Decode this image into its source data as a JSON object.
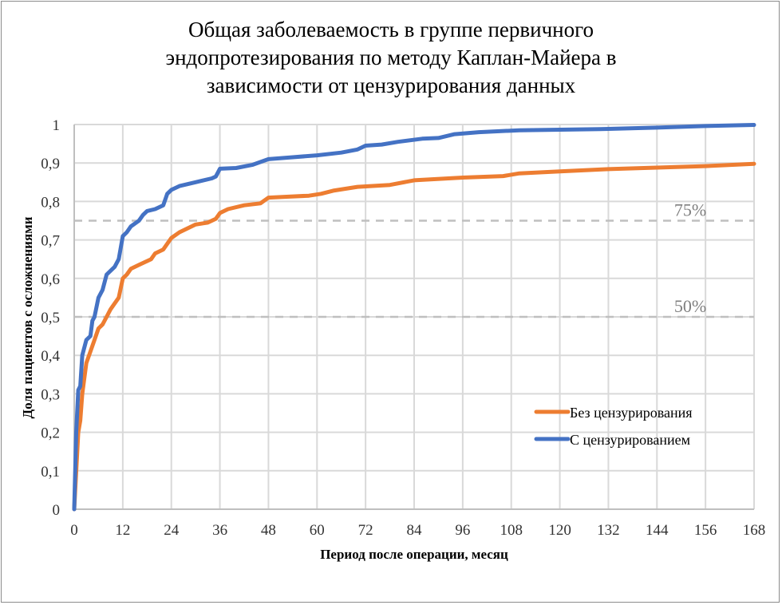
{
  "chart_data": {
    "type": "line",
    "title": "Общая заболеваемость в группе первичного эндопротезирования по методу Каплан-Майера в зависимости от цензурирования данных",
    "title_lines": [
      "Общая заболеваемость в группе первичного",
      "эндопротезирования по методу Каплан-Майера в",
      "зависимости от цензурирования данных"
    ],
    "xlabel": "Период после операции, месяц",
    "ylabel": "Доля пациентов с осложнениями",
    "xlim": [
      0,
      168
    ],
    "ylim": [
      0,
      1
    ],
    "x_ticks": [
      "0",
      "12",
      "24",
      "36",
      "48",
      "60",
      "72",
      "84",
      "96",
      "108",
      "120",
      "132",
      "144",
      "156",
      "168"
    ],
    "y_ticks": [
      "0",
      "0,1",
      "0,2",
      "0,3",
      "0,4",
      "0,5",
      "0,6",
      "0,7",
      "0,8",
      "0,9",
      "1"
    ],
    "grid": true,
    "legend_position": "lower right (inside plot)",
    "reference_lines": [
      {
        "y": 0.75,
        "label": "75%",
        "style": "dashed",
        "color": "#bfbfbf"
      },
      {
        "y": 0.5,
        "label": "50%",
        "style": "dashed",
        "color": "#bfbfbf"
      }
    ],
    "series": [
      {
        "name": "Без цензурирования",
        "color": "#ed7d31",
        "x": [
          0,
          1,
          1.5,
          2,
          3,
          4,
          5,
          6,
          7,
          8,
          9,
          11,
          12,
          13,
          14,
          16,
          17,
          19,
          20,
          22,
          23,
          24,
          26,
          28,
          30,
          33,
          35,
          36,
          38,
          42,
          46,
          48,
          52,
          58,
          61,
          64,
          70,
          78,
          84,
          96,
          106,
          110,
          120,
          132,
          144,
          156,
          168
        ],
        "values": [
          0,
          0.2,
          0.23,
          0.3,
          0.38,
          0.41,
          0.44,
          0.47,
          0.48,
          0.5,
          0.52,
          0.55,
          0.6,
          0.61,
          0.625,
          0.635,
          0.64,
          0.65,
          0.665,
          0.675,
          0.69,
          0.705,
          0.72,
          0.73,
          0.74,
          0.745,
          0.755,
          0.77,
          0.78,
          0.79,
          0.795,
          0.81,
          0.812,
          0.815,
          0.82,
          0.828,
          0.838,
          0.843,
          0.855,
          0.862,
          0.866,
          0.873,
          0.878,
          0.884,
          0.888,
          0.892,
          0.898
        ]
      },
      {
        "name": "С цензурированием",
        "color": "#4472c4",
        "x": [
          0,
          0.5,
          1,
          1.5,
          2,
          3,
          4,
          4.5,
          5,
          6,
          7,
          8,
          10,
          11,
          12,
          13,
          14,
          16,
          17,
          18,
          20,
          22,
          23,
          24,
          26,
          30,
          34,
          35,
          36,
          40,
          44,
          48,
          54,
          60,
          66,
          70,
          72,
          76,
          80,
          86,
          90,
          94,
          100,
          110,
          130,
          144,
          156,
          168
        ],
        "values": [
          0,
          0.2,
          0.31,
          0.32,
          0.4,
          0.44,
          0.45,
          0.49,
          0.5,
          0.55,
          0.57,
          0.61,
          0.63,
          0.65,
          0.71,
          0.72,
          0.735,
          0.75,
          0.765,
          0.775,
          0.78,
          0.79,
          0.82,
          0.83,
          0.84,
          0.85,
          0.86,
          0.865,
          0.885,
          0.887,
          0.895,
          0.91,
          0.915,
          0.92,
          0.927,
          0.935,
          0.945,
          0.948,
          0.955,
          0.963,
          0.965,
          0.975,
          0.98,
          0.985,
          0.988,
          0.992,
          0.996,
          0.999
        ]
      }
    ]
  }
}
